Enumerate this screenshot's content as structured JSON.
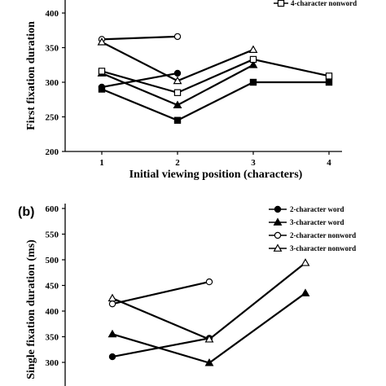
{
  "chart_data": [
    {
      "type": "line",
      "panel_label": "",
      "xlabel": "Initial viewing position (characters)",
      "ylabel": "First fixation duration",
      "x": [
        1,
        2,
        3,
        4
      ],
      "xticks": [
        "1",
        "2",
        "3",
        "4"
      ],
      "ylim": [
        200,
        400
      ],
      "yticks": [
        "200",
        "250",
        "300",
        "350",
        "400"
      ],
      "legend": [
        "4-character nonword"
      ],
      "series": [
        {
          "marker": "circle-filled",
          "values": [
            293,
            313,
            null,
            null
          ]
        },
        {
          "marker": "square-filled",
          "values": [
            290,
            245,
            300,
            300
          ]
        },
        {
          "marker": "triangle-filled",
          "values": [
            313,
            267,
            325,
            null
          ]
        },
        {
          "marker": "circle-open",
          "values": [
            362,
            366,
            null,
            null
          ]
        },
        {
          "marker": "triangle-open",
          "values": [
            358,
            302,
            347,
            null
          ]
        },
        {
          "name": "4-character nonword",
          "marker": "square-open",
          "values": [
            316,
            285,
            333,
            309
          ]
        }
      ]
    },
    {
      "type": "line",
      "panel_label": "(b)",
      "xlabel": "",
      "ylabel": "Single fixation duration (ms)",
      "x": [
        1,
        2,
        3
      ],
      "ylim": [
        250,
        600
      ],
      "yticks": [
        "300",
        "350",
        "400",
        "450",
        "500",
        "550",
        "600"
      ],
      "legend": [
        "2-character word",
        "3-character word",
        "2-character nonword",
        "3-character nonword"
      ],
      "series": [
        {
          "name": "2-character word",
          "marker": "circle-filled",
          "values": [
            311,
            347,
            null
          ]
        },
        {
          "name": "3-character word",
          "marker": "triangle-filled",
          "values": [
            355,
            299,
            435
          ]
        },
        {
          "name": "2-character nonword",
          "marker": "circle-open",
          "values": [
            414,
            457,
            null
          ]
        },
        {
          "name": "3-character nonword",
          "marker": "triangle-open",
          "values": [
            425,
            345,
            494
          ]
        }
      ]
    }
  ]
}
